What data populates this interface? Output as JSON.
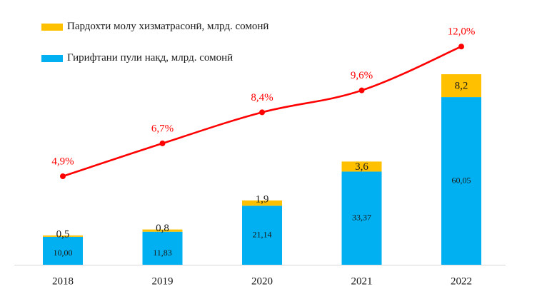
{
  "chart_data": {
    "type": "bar",
    "categories": [
      "2018",
      "2019",
      "2020",
      "2021",
      "2022"
    ],
    "series": [
      {
        "name": "Гирифтани пули нақд, млрд. сомонӣ",
        "color": "#00B0F0",
        "values": [
          10.0,
          11.83,
          21.14,
          33.37,
          60.05
        ],
        "labels": [
          "10,00",
          "11,83",
          "21,14",
          "33,37",
          "60,05"
        ]
      },
      {
        "name": "Пардохти молу хизматрасонӣ, млрд. сомонӣ",
        "color": "#FFC000",
        "values": [
          0.5,
          0.8,
          1.9,
          3.6,
          8.2
        ],
        "labels": [
          "0,5",
          "0,8",
          "1,9",
          "3,6",
          "8,2"
        ]
      }
    ],
    "line_series": {
      "color": "#FF0000",
      "values": [
        4.9,
        6.7,
        8.4,
        9.6,
        12.0
      ],
      "labels": [
        "4,9%",
        "6,7%",
        "8,4%",
        "9,6%",
        "12,0%"
      ]
    },
    "legend_position": "top-left",
    "grid": false
  }
}
